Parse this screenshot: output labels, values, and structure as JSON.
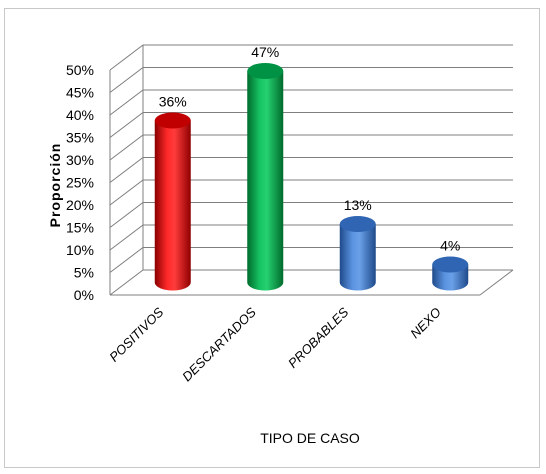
{
  "chart_data": {
    "type": "bar",
    "categories": [
      "POSITIVOS",
      "DESCARTADOS",
      "PROBABLES",
      "NEXO"
    ],
    "values": [
      36,
      47,
      13,
      4
    ],
    "data_labels": [
      "36%",
      "47%",
      "13%",
      "4%"
    ],
    "xlabel": "TIPO DE CASO",
    "ylabel": "Proporción",
    "ylim": [
      0,
      50
    ],
    "yticks": [
      "0%",
      "5%",
      "10%",
      "15%",
      "20%",
      "25%",
      "30%",
      "35%",
      "40%",
      "45%",
      "50%"
    ],
    "bar_colors": [
      "#e00000",
      "#00a651",
      "#3f78c9",
      "#3f78c9"
    ],
    "grid": true,
    "style": "3d-cylinder"
  }
}
